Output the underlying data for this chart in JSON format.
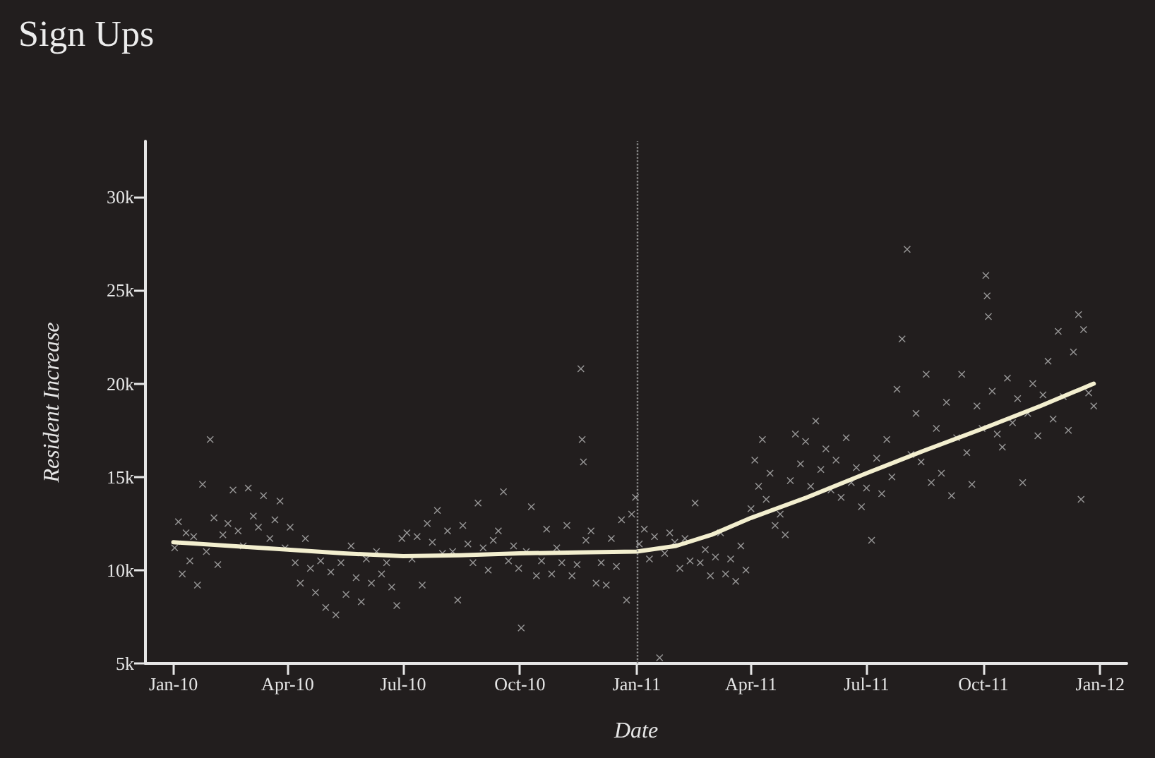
{
  "chart_data": {
    "type": "scatter",
    "title": "Sign Ups",
    "xlabel": "Date",
    "ylabel": "Resident Increase",
    "xlim": [
      "2009-12-10",
      "2012-01-22"
    ],
    "ylim": [
      5000,
      33000
    ],
    "xticks": [
      {
        "value": "2010-01-01",
        "label": "Jan-10"
      },
      {
        "value": "2010-04-01",
        "label": "Apr-10"
      },
      {
        "value": "2010-07-01",
        "label": "Jul-10"
      },
      {
        "value": "2010-10-01",
        "label": "Oct-10"
      },
      {
        "value": "2011-01-01",
        "label": "Jan-11"
      },
      {
        "value": "2011-04-01",
        "label": "Apr-11"
      },
      {
        "value": "2011-07-01",
        "label": "Jul-11"
      },
      {
        "value": "2011-10-01",
        "label": "Oct-11"
      },
      {
        "value": "2012-01-01",
        "label": "Jan-12"
      }
    ],
    "yticks": [
      {
        "value": 5000,
        "label": "5k"
      },
      {
        "value": 10000,
        "label": "10k"
      },
      {
        "value": 15000,
        "label": "15k"
      },
      {
        "value": 20000,
        "label": "20k"
      },
      {
        "value": 25000,
        "label": "25k"
      },
      {
        "value": 30000,
        "label": "30k"
      }
    ],
    "grid": false,
    "marker": "cross",
    "series": [
      {
        "color": "#b5b5b5",
        "x": [
          "2010-01-02",
          "2010-01-05",
          "2010-01-08",
          "2010-01-11",
          "2010-01-14",
          "2010-01-17",
          "2010-01-20",
          "2010-01-24",
          "2010-01-27",
          "2010-01-30",
          "2010-02-02",
          "2010-02-05",
          "2010-02-09",
          "2010-02-13",
          "2010-02-17",
          "2010-02-21",
          "2010-02-25",
          "2010-03-01",
          "2010-03-05",
          "2010-03-09",
          "2010-03-13",
          "2010-03-18",
          "2010-03-22",
          "2010-03-26",
          "2010-03-30",
          "2010-04-03",
          "2010-04-07",
          "2010-04-11",
          "2010-04-15",
          "2010-04-19",
          "2010-04-23",
          "2010-04-27",
          "2010-05-01",
          "2010-05-05",
          "2010-05-09",
          "2010-05-13",
          "2010-05-17",
          "2010-05-21",
          "2010-05-25",
          "2010-05-29",
          "2010-06-02",
          "2010-06-06",
          "2010-06-10",
          "2010-06-14",
          "2010-06-18",
          "2010-06-22",
          "2010-06-26",
          "2010-06-30",
          "2010-07-04",
          "2010-07-08",
          "2010-07-12",
          "2010-07-16",
          "2010-07-20",
          "2010-07-24",
          "2010-07-28",
          "2010-08-01",
          "2010-08-05",
          "2010-08-09",
          "2010-08-13",
          "2010-08-17",
          "2010-08-21",
          "2010-08-25",
          "2010-08-29",
          "2010-09-02",
          "2010-09-06",
          "2010-09-10",
          "2010-09-14",
          "2010-09-18",
          "2010-09-22",
          "2010-09-26",
          "2010-09-30",
          "2010-10-02",
          "2010-10-06",
          "2010-10-10",
          "2010-10-14",
          "2010-10-18",
          "2010-10-22",
          "2010-10-26",
          "2010-10-30",
          "2010-11-03",
          "2010-11-07",
          "2010-11-11",
          "2010-11-15",
          "2010-11-18",
          "2010-11-19",
          "2010-11-20",
          "2010-11-22",
          "2010-11-26",
          "2010-11-30",
          "2010-12-04",
          "2010-12-08",
          "2010-12-12",
          "2010-12-16",
          "2010-12-20",
          "2010-12-24",
          "2010-12-28",
          "2010-12-31",
          "2011-01-03",
          "2011-01-07",
          "2011-01-11",
          "2011-01-15",
          "2011-01-19",
          "2011-01-23",
          "2011-01-27",
          "2011-01-31",
          "2011-02-04",
          "2011-02-08",
          "2011-02-12",
          "2011-02-16",
          "2011-02-20",
          "2011-02-24",
          "2011-02-28",
          "2011-03-04",
          "2011-03-08",
          "2011-03-12",
          "2011-03-16",
          "2011-03-20",
          "2011-03-24",
          "2011-03-28",
          "2011-04-01",
          "2011-04-04",
          "2011-04-07",
          "2011-04-10",
          "2011-04-13",
          "2011-04-16",
          "2011-04-20",
          "2011-04-24",
          "2011-04-28",
          "2011-05-02",
          "2011-05-06",
          "2011-05-10",
          "2011-05-14",
          "2011-05-18",
          "2011-05-22",
          "2011-05-26",
          "2011-05-30",
          "2011-06-03",
          "2011-06-07",
          "2011-06-11",
          "2011-06-15",
          "2011-06-19",
          "2011-06-23",
          "2011-06-27",
          "2011-07-01",
          "2011-07-05",
          "2011-07-09",
          "2011-07-13",
          "2011-07-17",
          "2011-07-21",
          "2011-07-25",
          "2011-07-29",
          "2011-08-02",
          "2011-08-05",
          "2011-08-09",
          "2011-08-13",
          "2011-08-17",
          "2011-08-21",
          "2011-08-25",
          "2011-08-29",
          "2011-09-02",
          "2011-09-06",
          "2011-09-10",
          "2011-09-14",
          "2011-09-18",
          "2011-09-22",
          "2011-09-26",
          "2011-09-30",
          "2011-10-03",
          "2011-10-04",
          "2011-10-05",
          "2011-10-08",
          "2011-10-12",
          "2011-10-16",
          "2011-10-20",
          "2011-10-24",
          "2011-10-28",
          "2011-11-01",
          "2011-11-05",
          "2011-11-09",
          "2011-11-13",
          "2011-11-17",
          "2011-11-21",
          "2011-11-25",
          "2011-11-29",
          "2011-12-03",
          "2011-12-07",
          "2011-12-11",
          "2011-12-15",
          "2011-12-17",
          "2011-12-19",
          "2011-12-23",
          "2011-12-27"
        ],
        "values": [
          11200,
          12600,
          9800,
          12000,
          10500,
          11800,
          9200,
          14600,
          11000,
          17000,
          12800,
          10300,
          11900,
          12500,
          14300,
          12100,
          11300,
          14400,
          12900,
          12300,
          14000,
          11700,
          12700,
          13700,
          11200,
          12300,
          10400,
          9300,
          11700,
          10100,
          8800,
          10500,
          8000,
          9900,
          7600,
          10400,
          8700,
          11300,
          9600,
          8300,
          10600,
          9300,
          11000,
          9800,
          10400,
          9100,
          8100,
          11700,
          12000,
          10600,
          11800,
          9200,
          12500,
          11500,
          13200,
          10900,
          12100,
          11000,
          8400,
          12400,
          11400,
          10400,
          13600,
          11200,
          10000,
          11600,
          12100,
          14200,
          10500,
          11300,
          10100,
          6900,
          11000,
          13400,
          9700,
          10500,
          12200,
          9800,
          11200,
          10400,
          12400,
          9700,
          10300,
          20800,
          17000,
          15800,
          11600,
          12100,
          9300,
          10400,
          9200,
          11700,
          10200,
          12700,
          8400,
          13000,
          13900,
          11400,
          12200,
          10600,
          11800,
          5300,
          10900,
          12000,
          11500,
          10100,
          11700,
          10500,
          13600,
          10400,
          11100,
          9700,
          10700,
          12000,
          9800,
          10600,
          9400,
          11300,
          10000,
          13300,
          15900,
          14500,
          17000,
          13800,
          15200,
          12400,
          13000,
          11900,
          14800,
          17300,
          15700,
          16900,
          14500,
          18000,
          15400,
          16500,
          14300,
          15900,
          13900,
          17100,
          14700,
          15500,
          13400,
          14400,
          11600,
          16000,
          14100,
          17000,
          15000,
          19700,
          22400,
          27200,
          16200,
          18400,
          15800,
          20500,
          14700,
          17600,
          15200,
          19000,
          14000,
          17100,
          20500,
          16300,
          14600,
          18800,
          17600,
          25800,
          24700,
          23600,
          19600,
          17300,
          16600,
          20300,
          17900,
          19200,
          14700,
          18400,
          20000,
          17200,
          19400,
          21200,
          18100,
          22800,
          19300,
          17500,
          21700,
          23700,
          13800,
          22900,
          19500,
          18800
        ]
      },
      {
        "type": "line",
        "color": "#f3efcf",
        "marker": "none",
        "x": [
          "2010-01-01",
          "2010-02-15",
          "2010-04-01",
          "2010-05-15",
          "2010-07-01",
          "2010-08-15",
          "2010-10-01",
          "2010-11-15",
          "2011-01-01",
          "2011-02-01",
          "2011-03-01",
          "2011-04-01",
          "2011-05-15",
          "2011-07-01",
          "2011-08-15",
          "2011-10-01",
          "2011-11-15",
          "2011-12-27"
        ],
        "values": [
          11500,
          11300,
          11100,
          10900,
          10750,
          10800,
          10900,
          10950,
          11000,
          11300,
          11900,
          12800,
          13900,
          15200,
          16400,
          17600,
          18800,
          20000
        ]
      }
    ],
    "ref_lines": [
      {
        "axis": "x",
        "value": "2011-01-01",
        "line_style": "dotted",
        "color": "#8c8c8c"
      }
    ]
  }
}
